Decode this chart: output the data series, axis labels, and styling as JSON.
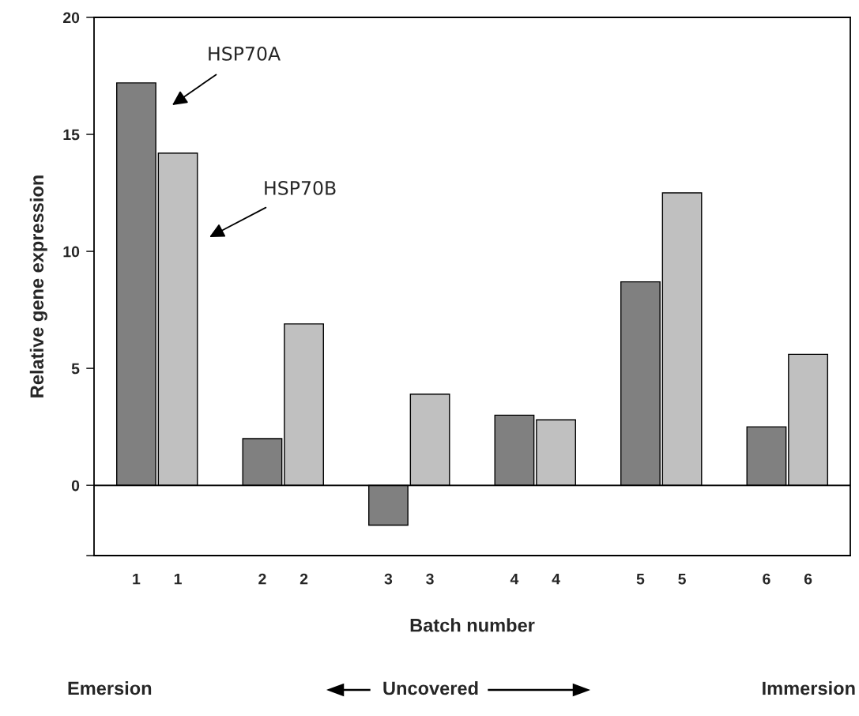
{
  "chart_data": {
    "type": "bar",
    "xlabel": "Batch number",
    "ylabel": "Relative gene expression",
    "categories": [
      "1",
      "2",
      "3",
      "4",
      "5",
      "6"
    ],
    "series": [
      {
        "color": "#808080",
        "values": [
          17.2,
          2.0,
          -1.7,
          3.0,
          8.7,
          2.5
        ]
      },
      {
        "color": "#c0c0c0",
        "values": [
          14.2,
          6.9,
          3.9,
          2.8,
          12.5,
          5.6
        ]
      }
    ],
    "ylim": [
      -3,
      20
    ],
    "yticks": [
      {
        "value": -3,
        "label": null
      },
      0,
      5,
      10,
      15,
      20
    ],
    "ref_lines": [
      {
        "axis": "y",
        "value": 0,
        "color": "#000000"
      }
    ],
    "grid": false,
    "legend": false,
    "annotations": [
      "HSP70A",
      "HSP70B",
      "Emersion",
      "Uncovered",
      "Immersion"
    ]
  }
}
